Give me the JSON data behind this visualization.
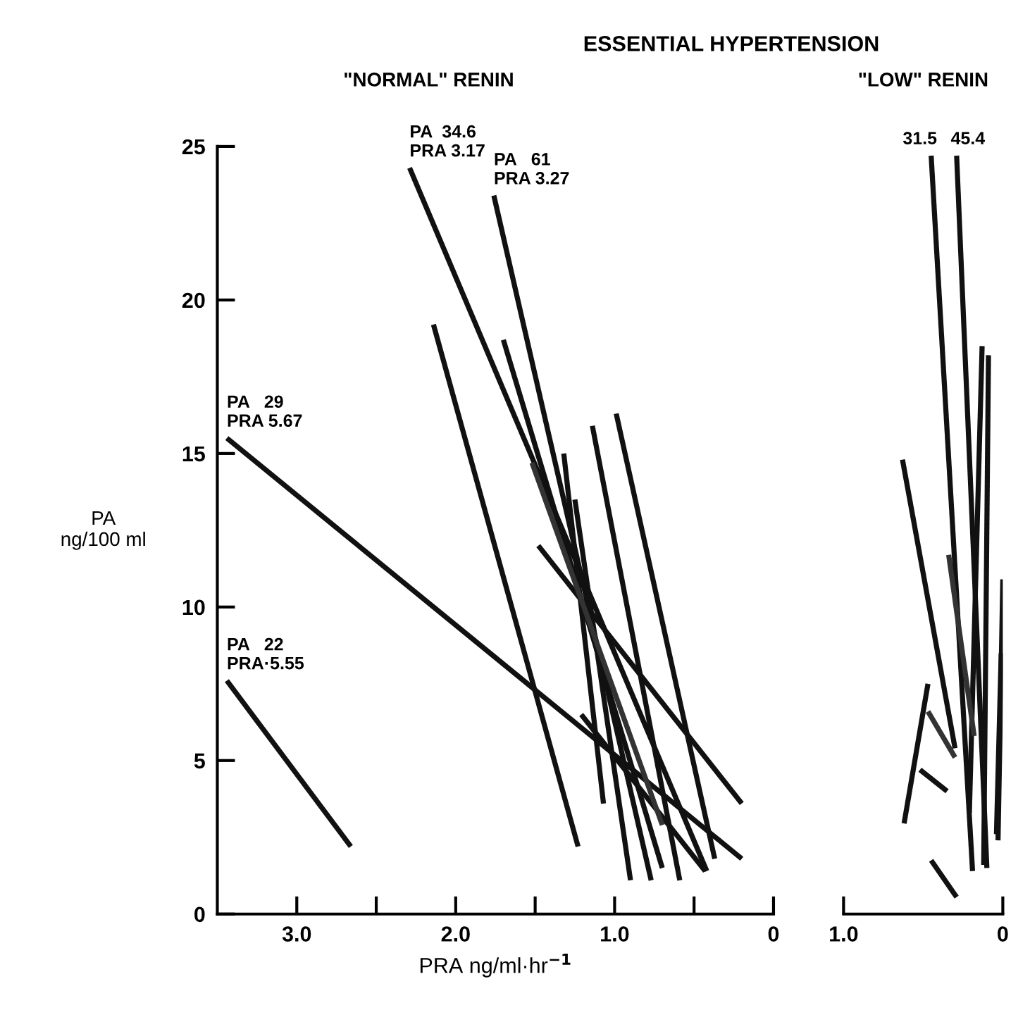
{
  "chart_data": [
    {
      "type": "line",
      "title": "ESSENTIAL HYPERTENSION",
      "subtitle": "\"NORMAL\" RENIN",
      "xlabel": "PRA ng/ml·hr$^{−1}$",
      "ylabel": "PA\nng/100 ml",
      "xlim": [
        3.5,
        0
      ],
      "ylim": [
        0,
        25
      ],
      "xticks": [
        {
          "value": 3.0,
          "label": "3.0"
        },
        {
          "value": 2.5,
          "label": null
        },
        {
          "value": 2.0,
          "label": "2.0"
        },
        {
          "value": 1.5,
          "label": null
        },
        {
          "value": 1.0,
          "label": "1.0"
        },
        {
          "value": 0.5,
          "label": null
        },
        {
          "value": 0,
          "label": "0"
        }
      ],
      "yticks": [
        0,
        5,
        10,
        15,
        20,
        25
      ],
      "grid": false,
      "legend": false,
      "marker": "none",
      "line_style": "solid",
      "annotations": [
        {
          "text": "PA  34.6\nPRA 3.17",
          "x": 2.29,
          "y": 24.3
        },
        {
          "text": "PA   61\nPRA 3.27",
          "x": 1.76,
          "y": 23.4
        },
        {
          "text": "PA   29\nPRA 5.67",
          "x": 3.44,
          "y": 15.5
        },
        {
          "text": "PA   22\nPRA·5.55",
          "x": 3.44,
          "y": 7.6
        }
      ],
      "series": [
        {
          "color": "#111111",
          "x": [
            3.44,
            2.66
          ],
          "values": [
            7.6,
            2.2
          ]
        },
        {
          "color": "#111111",
          "x": [
            3.44,
            0.2
          ],
          "values": [
            15.5,
            1.8
          ]
        },
        {
          "color": "#111111",
          "x": [
            2.14,
            1.23
          ],
          "values": [
            19.2,
            2.2
          ]
        },
        {
          "color": "#111111",
          "x": [
            2.29,
            0.42
          ],
          "values": [
            24.3,
            1.4
          ]
        },
        {
          "color": "#111111",
          "x": [
            1.76,
            0.77
          ],
          "values": [
            23.4,
            1.1
          ]
        },
        {
          "color": "#111111",
          "x": [
            1.7,
            0.7
          ],
          "values": [
            18.7,
            1.5
          ]
        },
        {
          "color": "#111111",
          "x": [
            1.32,
            1.07
          ],
          "values": [
            15.0,
            3.6
          ]
        },
        {
          "color": "#111111",
          "x": [
            1.14,
            0.59
          ],
          "values": [
            15.9,
            1.1
          ]
        },
        {
          "color": "#111111",
          "x": [
            0.99,
            0.37
          ],
          "values": [
            16.3,
            1.8
          ]
        },
        {
          "color": "#111111",
          "x": [
            1.48,
            0.2
          ],
          "values": [
            12.0,
            3.6
          ]
        },
        {
          "color": "#111111",
          "x": [
            1.21,
            0.43
          ],
          "values": [
            6.5,
            1.4
          ]
        },
        {
          "color": "#111111",
          "x": [
            1.25,
            0.9
          ],
          "values": [
            13.5,
            1.1
          ]
        },
        {
          "color": "#333333",
          "x": [
            1.52,
            0.7
          ],
          "values": [
            14.7,
            2.9
          ]
        }
      ]
    },
    {
      "type": "line",
      "subtitle": "\"LOW\" RENIN",
      "xlim": [
        1.0,
        0
      ],
      "ylim": [
        0,
        25
      ],
      "xticks": [
        {
          "value": 1.0,
          "label": "1.0"
        },
        {
          "value": 0,
          "label": "0"
        }
      ],
      "tick_labels": "x",
      "grid": false,
      "legend": false,
      "marker": "none",
      "line_style": "solid",
      "annotations": [
        {
          "text": "31.5",
          "x": 0.45,
          "y": 24.7
        },
        {
          "text": "45.4",
          "x": 0.29,
          "y": 24.7
        }
      ],
      "series": [
        {
          "color": "#111111",
          "x": [
            0.45,
            0.19
          ],
          "values": [
            24.7,
            1.4
          ]
        },
        {
          "color": "#111111",
          "x": [
            0.29,
            0.1
          ],
          "values": [
            24.7,
            1.5
          ]
        },
        {
          "color": "#111111",
          "x": [
            0.63,
            0.3
          ],
          "values": [
            14.8,
            5.4
          ]
        },
        {
          "color": "#111111",
          "x": [
            0.47,
            0.62
          ],
          "values": [
            7.5,
            2.95
          ]
        },
        {
          "color": "#111111",
          "x": [
            0.52,
            0.35
          ],
          "values": [
            4.7,
            4.0
          ]
        },
        {
          "color": "#111111",
          "x": [
            0.45,
            0.29
          ],
          "values": [
            1.75,
            0.55
          ]
        },
        {
          "color": "#111111",
          "x": [
            0.13,
            0.21
          ],
          "values": [
            18.5,
            3.3
          ]
        },
        {
          "color": "#111111",
          "x": [
            0.09,
            0.12
          ],
          "values": [
            18.2,
            1.6
          ]
        },
        {
          "color": "#111111",
          "x": [
            0.0,
            0.03
          ],
          "values": [
            10.9,
            2.4
          ]
        },
        {
          "color": "#111111",
          "x": [
            0.01,
            0.04
          ],
          "values": [
            8.5,
            2.6
          ]
        },
        {
          "color": "#333333",
          "x": [
            0.34,
            0.18
          ],
          "values": [
            11.7,
            5.8
          ]
        },
        {
          "color": "#333333",
          "x": [
            0.47,
            0.3
          ],
          "values": [
            6.6,
            5.1
          ]
        }
      ]
    }
  ]
}
